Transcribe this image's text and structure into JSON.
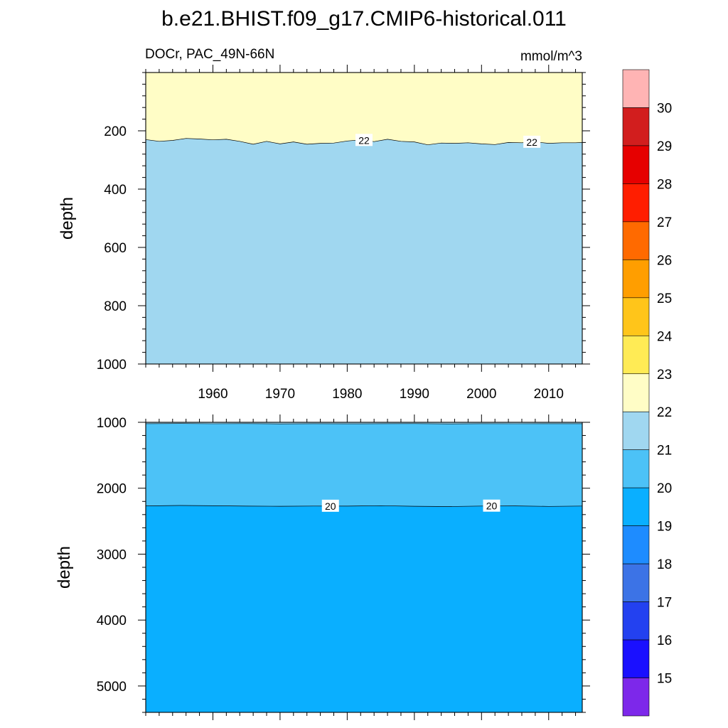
{
  "title": "b.e21.BHIST.f09_g17.CMIP6-historical.011",
  "left_subtitle": "DOCr, PAC_49N-66N",
  "right_subtitle": "mmol/m^3",
  "chart_data": [
    {
      "type": "contour",
      "panel": "upper",
      "ylabel": "depth",
      "ylim": [
        0,
        1000
      ],
      "y_inverted": true,
      "xlim": [
        1950,
        2015
      ],
      "x_ticks": [
        1960,
        1970,
        1980,
        1990,
        2000,
        2010
      ],
      "x_tick_labels": [
        "1960",
        "1970",
        "1980",
        "1990",
        "2000",
        "2010"
      ],
      "y_ticks": [
        200,
        400,
        600,
        800,
        1000
      ],
      "y_tick_labels": [
        "200",
        "400",
        "600",
        "800",
        "1000"
      ],
      "contour_line_level": 22,
      "contour_line_labels": [
        {
          "text": "22",
          "x": 1982.5
        },
        {
          "text": "22",
          "x": 2007.5
        }
      ],
      "contour_boundary": {
        "x": [
          1950,
          1952,
          1954,
          1956,
          1958,
          1960,
          1962,
          1964,
          1966,
          1968,
          1970,
          1972,
          1974,
          1976,
          1978,
          1980,
          1982,
          1984,
          1986,
          1988,
          1990,
          1992,
          1994,
          1996,
          1998,
          2000,
          2002,
          2004,
          2006,
          2008,
          2010,
          2012,
          2014,
          2015
        ],
        "depth": [
          230,
          236,
          233,
          226,
          228,
          231,
          229,
          236,
          246,
          236,
          245,
          238,
          246,
          243,
          242,
          235,
          231,
          237,
          229,
          236,
          238,
          248,
          242,
          243,
          241,
          245,
          247,
          240,
          241,
          238,
          243,
          241,
          241,
          240
        ]
      },
      "bands": [
        {
          "range": "22-23",
          "color": "#fffdc6",
          "region": "above contour"
        },
        {
          "range": "21-22",
          "color": "#a0d7f0",
          "region": "below contour"
        }
      ]
    },
    {
      "type": "contour",
      "panel": "lower",
      "ylabel": "depth",
      "ylim": [
        1000,
        5400
      ],
      "y_inverted": true,
      "xlim": [
        1950,
        2015
      ],
      "x_ticks": [
        1960,
        1970,
        1980,
        1990,
        2000,
        2010
      ],
      "y_ticks": [
        1000,
        2000,
        3000,
        4000,
        5000
      ],
      "y_tick_labels": [
        "1000",
        "2000",
        "3000",
        "4000",
        "5000"
      ],
      "contour_line_level": 20,
      "contour_line_labels": [
        {
          "text": "20",
          "x": 1977.5
        },
        {
          "text": "20",
          "x": 2001.5
        }
      ],
      "upper_boundary": {
        "x": [
          1950,
          1955,
          1960,
          1965,
          1970,
          1975,
          1980,
          1985,
          1990,
          1995,
          2000,
          2005,
          2010,
          2015
        ],
        "depth": [
          1020,
          1018,
          1022,
          1019,
          1024,
          1020,
          1023,
          1021,
          1019,
          1024,
          1020,
          1022,
          1021,
          1020
        ]
      },
      "contour_boundary": {
        "x": [
          1950,
          1955,
          1960,
          1965,
          1970,
          1975,
          1980,
          1985,
          1990,
          1995,
          2000,
          2005,
          2010,
          2015
        ],
        "depth": [
          2268,
          2262,
          2266,
          2272,
          2274,
          2270,
          2272,
          2265,
          2274,
          2278,
          2270,
          2268,
          2276,
          2270
        ]
      },
      "bands": [
        {
          "range": "21-22",
          "color": "#a0d7f0",
          "region": "top sliver"
        },
        {
          "range": "20-21",
          "color": "#4cc2f7",
          "region": "above contour"
        },
        {
          "range": "19-20",
          "color": "#0aafff",
          "region": "below contour"
        }
      ]
    },
    {
      "type": "colorbar",
      "labels": [
        "15",
        "16",
        "17",
        "18",
        "19",
        "20",
        "21",
        "22",
        "23",
        "24",
        "25",
        "26",
        "27",
        "28",
        "29",
        "30"
      ],
      "colors_top_to_bottom": [
        "#ffb4b4",
        "#d21e1e",
        "#e60000",
        "#ff1e00",
        "#ff6a00",
        "#ff9e00",
        "#ffc51a",
        "#ffeb55",
        "#fffdc6",
        "#a0d7f0",
        "#4cc2f7",
        "#0aafff",
        "#1e8cff",
        "#3c73e6",
        "#2341f0",
        "#1a10ff",
        "#7d28ea"
      ]
    }
  ]
}
